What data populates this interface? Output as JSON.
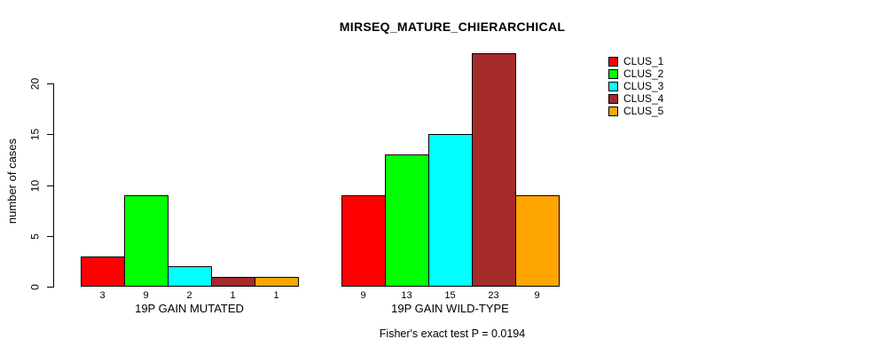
{
  "chart_data": {
    "type": "bar",
    "title": "MIRSEQ_MATURE_CHIERARCHICAL",
    "ylabel": "number of cases",
    "xlabel": "",
    "categories": [
      "19P GAIN MUTATED",
      "19P GAIN WILD-TYPE"
    ],
    "series": [
      {
        "name": "CLUS_1",
        "color": "#ff0000",
        "values": [
          3,
          9
        ]
      },
      {
        "name": "CLUS_2",
        "color": "#00ff00",
        "values": [
          9,
          13
        ]
      },
      {
        "name": "CLUS_3",
        "color": "#00ffff",
        "values": [
          2,
          15
        ]
      },
      {
        "name": "CLUS_4",
        "color": "#a52a2a",
        "values": [
          1,
          23
        ]
      },
      {
        "name": "CLUS_5",
        "color": "#ffa500",
        "values": [
          1,
          9
        ]
      }
    ],
    "bar_value_labels": [
      [
        "3",
        "9",
        "2",
        "1",
        "1"
      ],
      [
        "9",
        "13",
        "15",
        "23",
        "9"
      ]
    ],
    "yticks": [
      0,
      5,
      10,
      15,
      20
    ],
    "ylim": [
      0,
      20
    ],
    "grid": false,
    "legend_position": "right-top",
    "annotation": "Fisher's exact test P = 0.0194",
    "background_color": "#ffffff",
    "axis_color": "#000000"
  }
}
